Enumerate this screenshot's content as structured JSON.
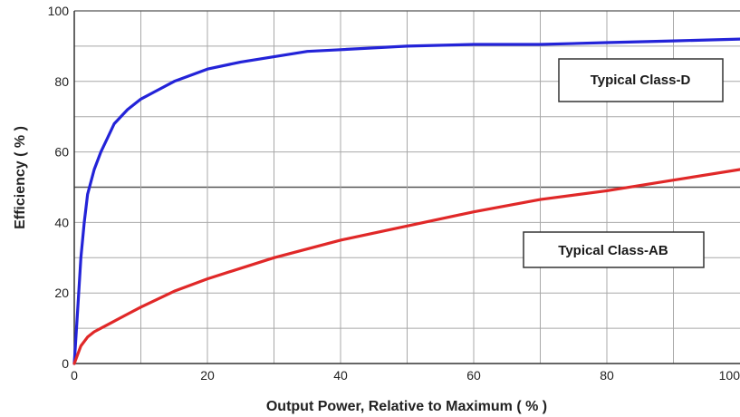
{
  "chart_data": {
    "type": "line",
    "title": "",
    "xlabel": "Output Power, Relative to Maximum ( % )",
    "ylabel": "Efficiency ( % )",
    "xlim": [
      0,
      100
    ],
    "ylim": [
      0,
      100
    ],
    "xticks": [
      0,
      20,
      40,
      60,
      80,
      100
    ],
    "yticks": [
      0,
      20,
      40,
      60,
      80,
      100
    ],
    "x_tick_labels": [
      "0",
      "20",
      "40",
      "60",
      "80",
      "100"
    ],
    "y_tick_labels": [
      "0",
      "20",
      "40",
      "60",
      "80",
      "100"
    ],
    "grid": true,
    "series": [
      {
        "name": "Typical Class-D",
        "color": "#2323d8",
        "x": [
          0,
          0.5,
          1,
          1.5,
          2,
          3,
          4,
          5,
          6,
          8,
          10,
          12,
          15,
          20,
          25,
          30,
          35,
          40,
          50,
          60,
          70,
          80,
          90,
          100
        ],
        "y": [
          0,
          15,
          30,
          40,
          48,
          55,
          60,
          64,
          68,
          72,
          75,
          77,
          80,
          83.5,
          85.5,
          87,
          88.5,
          89,
          90,
          90.5,
          90.5,
          91,
          91.5,
          92
        ]
      },
      {
        "name": "Typical Class-AB",
        "color": "#e02828",
        "x": [
          0,
          1,
          2,
          3,
          5,
          8,
          10,
          15,
          20,
          30,
          40,
          50,
          60,
          70,
          80,
          90,
          100
        ],
        "y": [
          0,
          5,
          7.5,
          9,
          11,
          14,
          16,
          20.5,
          24,
          30,
          35,
          39,
          43,
          46.5,
          49,
          52,
          55
        ]
      }
    ],
    "annotations": [
      {
        "text": "Typical Class-D",
        "series": 0
      },
      {
        "text": "Typical Class-AB",
        "series": 1
      }
    ]
  }
}
